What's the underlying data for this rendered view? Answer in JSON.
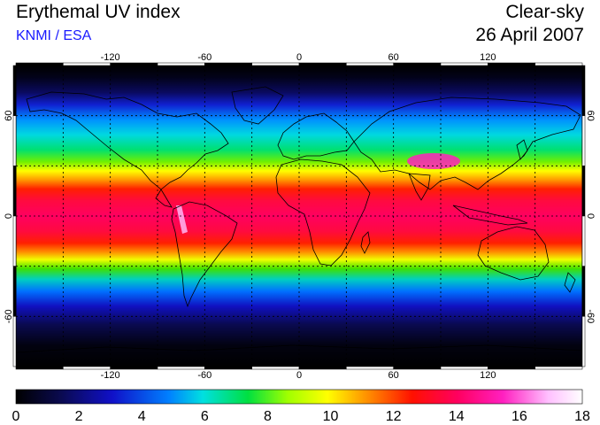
{
  "header": {
    "title": "Erythemal UV index",
    "subtitle": "KNMI / ESA",
    "condition": "Clear-sky",
    "date": "26 April 2007"
  },
  "map": {
    "projection": "equirectangular",
    "lon_range": [
      -180,
      180
    ],
    "lat_range": [
      -90,
      90
    ],
    "grid_style": "dotted",
    "lon_gridlines": [
      -150,
      -120,
      -90,
      -60,
      -30,
      0,
      30,
      60,
      90,
      120,
      150
    ],
    "lat_gridlines": [
      -60,
      -30,
      0,
      30,
      60
    ],
    "lon_tick_labels": [
      "-120",
      "-60",
      "0",
      "60",
      "120"
    ],
    "lon_tick_values": [
      -120,
      -60,
      0,
      60,
      120
    ],
    "lat_tick_labels": [
      "60",
      "0",
      "-60"
    ],
    "lat_tick_values": [
      60,
      0,
      -60
    ]
  },
  "colorbar": {
    "min": 0,
    "max": 18,
    "tick_labels": [
      "0",
      "2",
      "4",
      "6",
      "8",
      "10",
      "12",
      "14",
      "16",
      "18"
    ],
    "colors": [
      "#000000",
      "#0a0a50",
      "#1010c8",
      "#0080ff",
      "#00e0e0",
      "#00e040",
      "#a0ff00",
      "#ffff00",
      "#ff9000",
      "#ff1000",
      "#ff0060",
      "#ff20c0",
      "#ffc0ff",
      "#ffffff"
    ]
  }
}
